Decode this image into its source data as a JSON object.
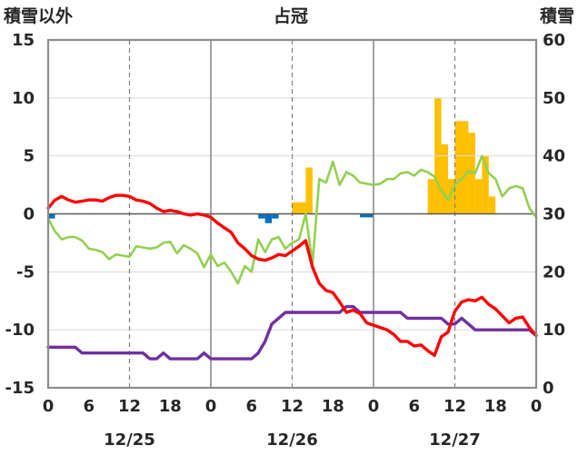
{
  "chart_data": {
    "type": "line",
    "title": "占冠",
    "ylabel_left": "積雪以外",
    "ylabel_right": "積雪",
    "ylim_left": [
      -15,
      15
    ],
    "ylim_right": [
      0,
      60
    ],
    "left_ticks": [
      "15",
      "10",
      "5",
      "0",
      "-5",
      "-10",
      "-15"
    ],
    "right_ticks": [
      "60",
      "50",
      "40",
      "30",
      "20",
      "10",
      "0"
    ],
    "xlim_hours": [
      0,
      72
    ],
    "x_tick_labels": [
      "0",
      "6",
      "12",
      "18",
      "0",
      "6",
      "12",
      "18",
      "0",
      "6",
      "12",
      "18",
      "0"
    ],
    "date_labels": [
      "12/25",
      "12/26",
      "12/27"
    ],
    "grid": "vertical dashed at 12:00, solid at 0:00",
    "colors": {
      "temperature": "#ff0000",
      "dewpoint": "#92d050",
      "snow_depth": "#7030a0",
      "precip_positive": "#ffc000",
      "precip_negative": "#0070c0"
    },
    "series": [
      {
        "key": "temperature",
        "axis": "left",
        "x": [
          0,
          1,
          2,
          3,
          4,
          5,
          6,
          7,
          8,
          9,
          10,
          11,
          12,
          13,
          14,
          15,
          16,
          17,
          18,
          19,
          20,
          21,
          22,
          23,
          24,
          25,
          26,
          27,
          28,
          29,
          30,
          31,
          32,
          33,
          34,
          35,
          36,
          37,
          38,
          39,
          40,
          41,
          42,
          43,
          44,
          45,
          46,
          47,
          48,
          49,
          50,
          51,
          52,
          53,
          54,
          55,
          56,
          57,
          58,
          59,
          60,
          61,
          62,
          63,
          64,
          65,
          66,
          67,
          68,
          69,
          70,
          71,
          72
        ],
        "y": [
          0.5,
          1.2,
          1.5,
          1.2,
          1.0,
          1.1,
          1.2,
          1.2,
          1.1,
          1.4,
          1.6,
          1.6,
          1.5,
          1.2,
          1.1,
          0.9,
          0.5,
          0.2,
          0.3,
          0.2,
          0.0,
          -0.1,
          0.0,
          -0.1,
          -0.3,
          -0.8,
          -1.2,
          -1.6,
          -2.5,
          -3.0,
          -3.6,
          -3.9,
          -4.0,
          -3.8,
          -3.5,
          -3.6,
          -3.2,
          -2.8,
          -2.3,
          -4.6,
          -6.0,
          -6.6,
          -6.8,
          -7.6,
          -8.5,
          -8.3,
          -8.6,
          -9.4,
          -9.6,
          -9.8,
          -10.0,
          -10.4,
          -11.0,
          -11.0,
          -11.4,
          -11.3,
          -11.8,
          -12.2,
          -10.6,
          -10.2,
          -8.4,
          -7.6,
          -7.4,
          -7.5,
          -7.2,
          -7.8,
          -8.2,
          -8.8,
          -9.4,
          -9.0,
          -8.9,
          -9.8,
          -10.5
        ]
      },
      {
        "key": "dewpoint",
        "axis": "left",
        "x": [
          0,
          1,
          2,
          3,
          4,
          5,
          6,
          7,
          8,
          9,
          10,
          11,
          12,
          13,
          14,
          15,
          16,
          17,
          18,
          19,
          20,
          21,
          22,
          23,
          24,
          25,
          26,
          27,
          28,
          29,
          30,
          31,
          32,
          33,
          34,
          35,
          36,
          37,
          38,
          39,
          40,
          41,
          42,
          43,
          44,
          45,
          46,
          47,
          48,
          49,
          50,
          51,
          52,
          53,
          54,
          55,
          56,
          57,
          58,
          59,
          60,
          61,
          62,
          63,
          64,
          65,
          66,
          67,
          68,
          69,
          70,
          71,
          72
        ],
        "y": [
          -0.4,
          -1.5,
          -2.2,
          -2.0,
          -2.0,
          -2.3,
          -3.0,
          -3.1,
          -3.3,
          -3.9,
          -3.5,
          -3.6,
          -3.7,
          -2.8,
          -2.9,
          -3.0,
          -2.9,
          -2.5,
          -2.4,
          -3.4,
          -2.7,
          -3.0,
          -3.4,
          -4.6,
          -3.5,
          -4.5,
          -4.2,
          -5.0,
          -6.0,
          -4.5,
          -5.0,
          -2.2,
          -3.3,
          -2.2,
          -2.0,
          -3.0,
          -2.5,
          -2.2,
          0.0,
          -4.3,
          3.0,
          2.7,
          4.5,
          2.5,
          3.6,
          3.3,
          2.7,
          2.6,
          2.5,
          2.6,
          3.0,
          3.0,
          3.5,
          3.6,
          3.3,
          3.8,
          3.6,
          3.2,
          2.0,
          1.2,
          2.5,
          3.0,
          3.7,
          3.5,
          5.0,
          3.5,
          3.0,
          1.5,
          2.2,
          2.4,
          2.2,
          0.5,
          -0.3
        ]
      },
      {
        "key": "snow_depth",
        "axis": "right",
        "x": [
          0,
          1,
          2,
          3,
          4,
          5,
          6,
          7,
          8,
          9,
          10,
          11,
          12,
          13,
          14,
          15,
          16,
          17,
          18,
          19,
          20,
          21,
          22,
          23,
          24,
          25,
          26,
          27,
          28,
          29,
          30,
          31,
          32,
          33,
          34,
          35,
          36,
          37,
          38,
          39,
          40,
          41,
          42,
          43,
          44,
          45,
          46,
          47,
          48,
          49,
          50,
          51,
          52,
          53,
          54,
          55,
          56,
          57,
          58,
          59,
          60,
          61,
          62,
          63,
          64,
          65,
          66,
          67,
          68,
          69,
          70,
          71,
          72
        ],
        "y": [
          7,
          7,
          7,
          7,
          7,
          6,
          6,
          6,
          6,
          6,
          6,
          6,
          6,
          6,
          6,
          5,
          5,
          6,
          5,
          5,
          5,
          5,
          5,
          6,
          5,
          5,
          5,
          5,
          5,
          5,
          5,
          6,
          8,
          11,
          12,
          13,
          13,
          13,
          13,
          13,
          13,
          13,
          13,
          13,
          14,
          14,
          13,
          13,
          13,
          13,
          13,
          13,
          13,
          12,
          12,
          12,
          12,
          12,
          12,
          11,
          11,
          12,
          11,
          10,
          10,
          10,
          10,
          10,
          10,
          10,
          10,
          10,
          9
        ]
      },
      {
        "key": "precipitation",
        "axis": "left",
        "x": [
          0,
          31,
          32,
          33,
          36,
          37,
          38,
          46,
          47,
          56,
          57,
          58,
          59,
          60,
          61,
          62,
          63,
          64,
          65
        ],
        "y": [
          -0.4,
          -0.4,
          -0.8,
          -0.4,
          1.0,
          1.0,
          4.0,
          -0.3,
          -0.3,
          3.0,
          10.0,
          6.0,
          3.0,
          8.0,
          8.0,
          7.0,
          3.0,
          5.0,
          1.5
        ]
      }
    ]
  }
}
